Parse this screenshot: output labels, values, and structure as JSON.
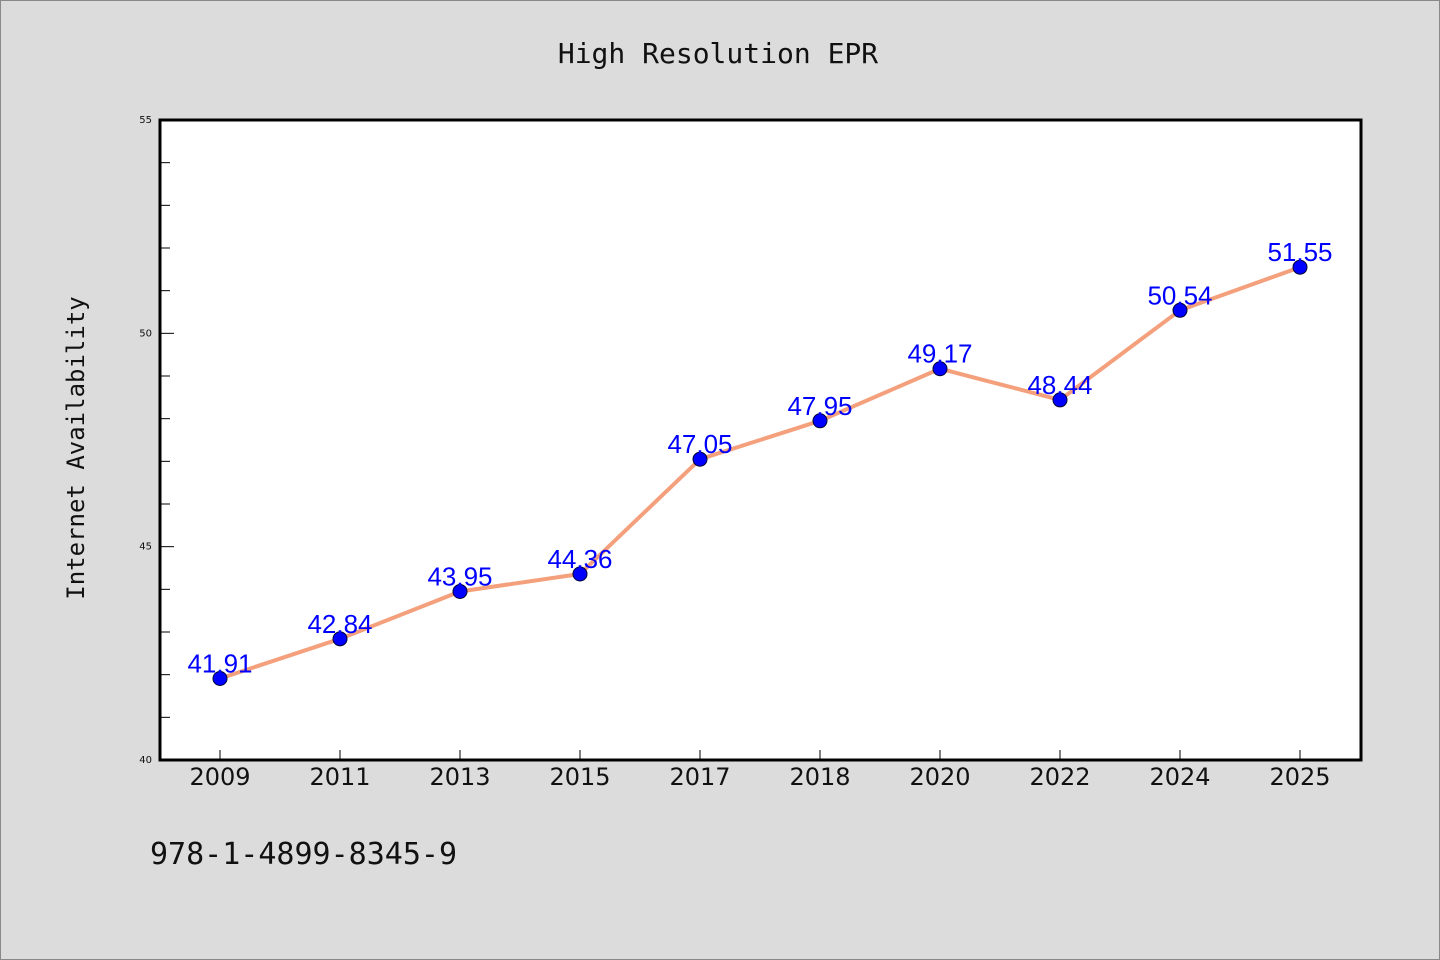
{
  "chart_data": {
    "type": "line",
    "title": "High Resolution EPR",
    "xlabel": "",
    "ylabel": "Internet Availability",
    "categories": [
      "2009",
      "2011",
      "2013",
      "2015",
      "2017",
      "2018",
      "2020",
      "2022",
      "2024",
      "2025"
    ],
    "series": [
      {
        "values": [
          41.91,
          42.84,
          43.95,
          44.36,
          47.05,
          47.95,
          49.17,
          48.44,
          50.54,
          51.55
        ],
        "data_labels": [
          "41.91",
          "42.84",
          "43.95",
          "44.36",
          "47.05",
          "47.95",
          "49.17",
          "48.44",
          "50.54",
          "51.55"
        ],
        "line_color": "#f4a07c",
        "marker_color": "#0000ff"
      }
    ],
    "ylim": [
      40,
      55
    ],
    "yticks": [
      "40",
      "45",
      "50",
      "55"
    ],
    "grid": false,
    "legend": "none"
  },
  "footer": {
    "isbn": "978-1-4899-8345-9"
  }
}
